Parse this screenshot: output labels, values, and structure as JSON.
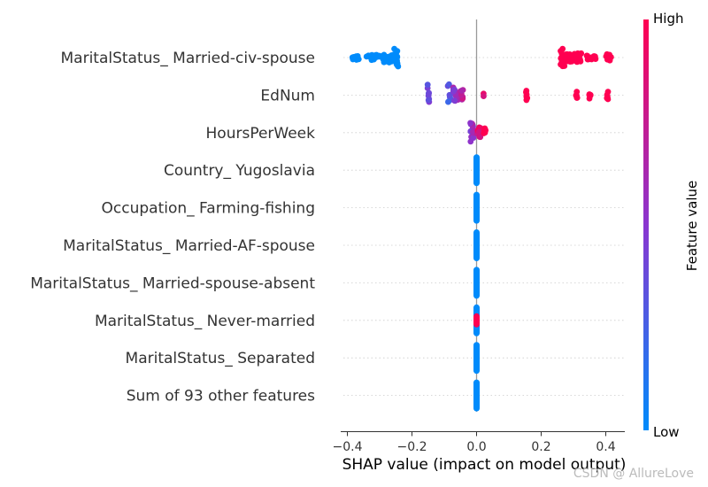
{
  "chart_data": {
    "type": "scatter",
    "subtype": "shap-beeswarm",
    "xlabel": "SHAP value (impact on model output)",
    "xlim": [
      -0.41,
      0.46
    ],
    "xticks": [
      -0.4,
      -0.2,
      0.0,
      0.2,
      0.4
    ],
    "xtick_labels": [
      "−0.4",
      "−0.2",
      "0.0",
      "0.2",
      "0.4"
    ],
    "features": [
      {
        "name": "MaritalStatus_ Married-civ-spouse",
        "clusters": [
          {
            "x": -0.375,
            "spread": 0.012,
            "n": 14,
            "width": 5,
            "c": 0.0
          },
          {
            "x": -0.32,
            "spread": 0.03,
            "n": 20,
            "width": 6,
            "c": 0.0
          },
          {
            "x": -0.27,
            "spread": 0.02,
            "n": 24,
            "width": 12,
            "c": 0.0
          },
          {
            "x": -0.25,
            "spread": 0.012,
            "n": 14,
            "width": 20,
            "c": 0.0
          },
          {
            "x": 0.27,
            "spread": 0.012,
            "n": 22,
            "width": 20,
            "c": 1.0
          },
          {
            "x": 0.3,
            "spread": 0.025,
            "n": 28,
            "width": 10,
            "c": 1.0
          },
          {
            "x": 0.355,
            "spread": 0.02,
            "n": 12,
            "width": 5,
            "c": 1.0
          },
          {
            "x": 0.41,
            "spread": 0.01,
            "n": 10,
            "width": 8,
            "c": 1.0
          }
        ]
      },
      {
        "name": "EdNum",
        "clusters": [
          {
            "x": -0.15,
            "spread": 0.003,
            "n": 8,
            "width": 26,
            "c": 0.4
          },
          {
            "x": -0.085,
            "spread": 0.004,
            "n": 8,
            "width": 26,
            "c": 0.25
          },
          {
            "x": -0.065,
            "spread": 0.008,
            "n": 12,
            "width": 18,
            "c": 0.55
          },
          {
            "x": -0.045,
            "spread": 0.005,
            "n": 8,
            "width": 12,
            "c": 0.75
          },
          {
            "x": 0.02,
            "spread": 0.002,
            "n": 2,
            "width": 4,
            "c": 0.9
          },
          {
            "x": 0.155,
            "spread": 0.002,
            "n": 6,
            "width": 12,
            "c": 1.0
          },
          {
            "x": 0.31,
            "spread": 0.003,
            "n": 6,
            "width": 8,
            "c": 1.0
          },
          {
            "x": 0.35,
            "spread": 0.003,
            "n": 6,
            "width": 12,
            "c": 1.0
          },
          {
            "x": 0.405,
            "spread": 0.002,
            "n": 5,
            "width": 10,
            "c": 1.0
          }
        ]
      },
      {
        "name": "HoursPerWeek",
        "clusters": [
          {
            "x": -0.015,
            "spread": 0.006,
            "n": 14,
            "width": 22,
            "c": 0.55
          },
          {
            "x": 0.008,
            "spread": 0.006,
            "n": 10,
            "width": 12,
            "c": 0.85
          },
          {
            "x": 0.025,
            "spread": 0.004,
            "n": 6,
            "width": 10,
            "c": 1.0
          }
        ]
      },
      {
        "name": "Country_ Yugoslavia",
        "clusters": [
          {
            "x": 0.0,
            "spread": 0.0,
            "n": 12,
            "width": 36,
            "c": 0.0
          }
        ]
      },
      {
        "name": "Occupation_ Farming-fishing",
        "clusters": [
          {
            "x": 0.0,
            "spread": 0.0,
            "n": 12,
            "width": 36,
            "c": 0.0
          }
        ]
      },
      {
        "name": "MaritalStatus_ Married-AF-spouse",
        "clusters": [
          {
            "x": 0.0,
            "spread": 0.0,
            "n": 12,
            "width": 36,
            "c": 0.0
          }
        ]
      },
      {
        "name": "MaritalStatus_ Married-spouse-absent",
        "clusters": [
          {
            "x": 0.0,
            "spread": 0.0,
            "n": 12,
            "width": 36,
            "c": 0.0
          }
        ]
      },
      {
        "name": "MaritalStatus_ Never-married",
        "clusters": [
          {
            "x": 0.0,
            "spread": 0.0,
            "n": 10,
            "width": 36,
            "c": 0.0
          },
          {
            "x": 0.0,
            "spread": 0.0,
            "n": 6,
            "width": 16,
            "c": 1.0
          }
        ]
      },
      {
        "name": "MaritalStatus_ Separated",
        "clusters": [
          {
            "x": 0.0,
            "spread": 0.0,
            "n": 12,
            "width": 36,
            "c": 0.0
          }
        ]
      },
      {
        "name": "Sum of 93 other features",
        "clusters": [
          {
            "x": 0.0,
            "spread": 0.0,
            "n": 12,
            "width": 36,
            "c": 0.0
          }
        ]
      }
    ],
    "colorbar": {
      "title": "Feature value",
      "high_label": "High",
      "low_label": "Low",
      "low_color": "#008bfb",
      "mid_color": "#8a36d0",
      "high_color": "#ff0051"
    }
  },
  "watermark": "CSDN @ AllureLove"
}
